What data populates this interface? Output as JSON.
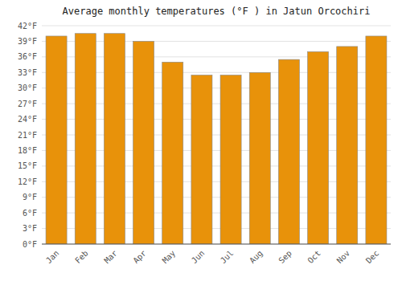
{
  "chart_data": {
    "type": "bar",
    "title": "Average monthly temperatures (°F ) in Jatun Orcochiri",
    "categories": [
      "Jan",
      "Feb",
      "Mar",
      "Apr",
      "May",
      "Jun",
      "Jul",
      "Aug",
      "Sep",
      "Oct",
      "Nov",
      "Dec"
    ],
    "values": [
      40.0,
      40.5,
      40.5,
      39.0,
      35.0,
      32.5,
      32.5,
      33.0,
      35.5,
      37.0,
      38.0,
      40.0
    ],
    "color": "#E8920A",
    "ylim": [
      0,
      42
    ],
    "yticks": [
      {
        "value": 0,
        "label": "0°F"
      },
      {
        "value": 3,
        "label": "3°F"
      },
      {
        "value": 6,
        "label": "6°F"
      },
      {
        "value": 9,
        "label": "9°F"
      },
      {
        "value": 12,
        "label": "12°F"
      },
      {
        "value": 15,
        "label": "15°F"
      },
      {
        "value": 18,
        "label": "18°F"
      },
      {
        "value": 21,
        "label": "21°F"
      },
      {
        "value": 24,
        "label": "24°F"
      },
      {
        "value": 27,
        "label": "27°F"
      },
      {
        "value": 30,
        "label": "30°F"
      },
      {
        "value": 33,
        "label": "33°F"
      },
      {
        "value": 36,
        "label": "36°F"
      },
      {
        "value": 39,
        "label": "39°F"
      },
      {
        "value": 42,
        "label": "42°F"
      }
    ],
    "grid": true
  }
}
